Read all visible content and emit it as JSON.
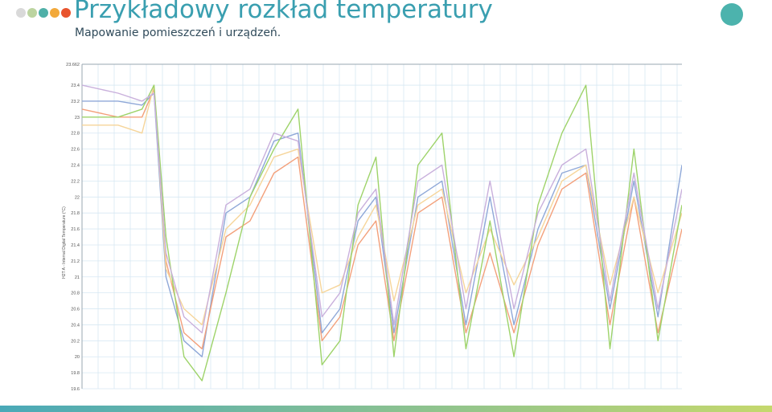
{
  "header": {
    "title": "Przykładowy rozkład temperatury",
    "subtitle": "Mapowanie pomieszczeń i urządzeń."
  },
  "colors": {
    "title": "#3a9fb0",
    "circle": "#4cb3ad",
    "dots": [
      "#d9d9d9",
      "#bcd4a0",
      "#4fb0a8",
      "#f2a93b",
      "#e8532d"
    ],
    "bar_start": "#4aa9b8",
    "bar_end": "#c5d86d",
    "grid": "#d7e8f3",
    "series": [
      "#8fa8d8",
      "#f3a07b",
      "#f6d59a",
      "#9ed36a",
      "#c9b0dc"
    ]
  },
  "chart_data": {
    "type": "line",
    "title": "",
    "xlabel": "",
    "ylabel": "H2T A - Internal Digital Temperature (°C)",
    "ylim": [
      19.6,
      23.662
    ],
    "yticks": [
      "23.662",
      "23.4",
      "23.2",
      "23",
      "22.8",
      "22.6",
      "22.4",
      "22.2",
      "22",
      "21.8",
      "21.6",
      "21.4",
      "21.2",
      "21",
      "20.8",
      "20.6",
      "20.4",
      "20.2",
      "20",
      "19.8",
      "19.6"
    ],
    "x": [
      0,
      6,
      10,
      12,
      14,
      17,
      20,
      24,
      28,
      32,
      36,
      40,
      43,
      46,
      49,
      52,
      56,
      60,
      64,
      68,
      72,
      76,
      80,
      84,
      88,
      92,
      96,
      100
    ],
    "series": [
      {
        "values": [
          23.2,
          23.2,
          23.15,
          23.3,
          21.0,
          20.2,
          20.0,
          21.8,
          22.0,
          22.7,
          22.8,
          20.3,
          20.6,
          21.7,
          22.0,
          20.3,
          22.0,
          22.2,
          20.4,
          22.0,
          20.4,
          21.6,
          22.3,
          22.4,
          20.6,
          22.2,
          20.5,
          22.4
        ]
      },
      {
        "values": [
          23.1,
          23.0,
          23.0,
          23.35,
          21.2,
          20.3,
          20.1,
          21.5,
          21.7,
          22.3,
          22.5,
          20.2,
          20.5,
          21.4,
          21.7,
          20.2,
          21.8,
          22.0,
          20.3,
          21.3,
          20.3,
          21.4,
          22.1,
          22.3,
          20.4,
          22.0,
          20.3,
          21.6
        ]
      },
      {
        "values": [
          22.9,
          22.9,
          22.8,
          23.4,
          21.1,
          20.6,
          20.4,
          21.6,
          21.9,
          22.5,
          22.6,
          20.8,
          20.9,
          21.5,
          21.9,
          20.7,
          21.9,
          22.1,
          20.8,
          21.6,
          20.9,
          21.5,
          22.2,
          22.4,
          20.9,
          22.0,
          20.8,
          21.8
        ]
      },
      {
        "values": [
          23.0,
          23.0,
          23.1,
          23.4,
          21.5,
          20.0,
          19.7,
          20.8,
          22.0,
          22.6,
          23.1,
          19.9,
          20.2,
          21.9,
          22.5,
          20.0,
          22.4,
          22.8,
          20.1,
          21.7,
          20.0,
          21.9,
          22.8,
          23.4,
          20.1,
          22.6,
          20.2,
          21.9
        ]
      },
      {
        "values": [
          23.4,
          23.3,
          23.2,
          23.3,
          21.3,
          20.5,
          20.3,
          21.9,
          22.1,
          22.8,
          22.7,
          20.5,
          20.8,
          21.8,
          22.1,
          20.4,
          22.2,
          22.4,
          20.6,
          22.2,
          20.6,
          21.8,
          22.4,
          22.6,
          20.7,
          22.3,
          20.6,
          22.1
        ]
      }
    ],
    "grid": true,
    "legend": "none"
  }
}
